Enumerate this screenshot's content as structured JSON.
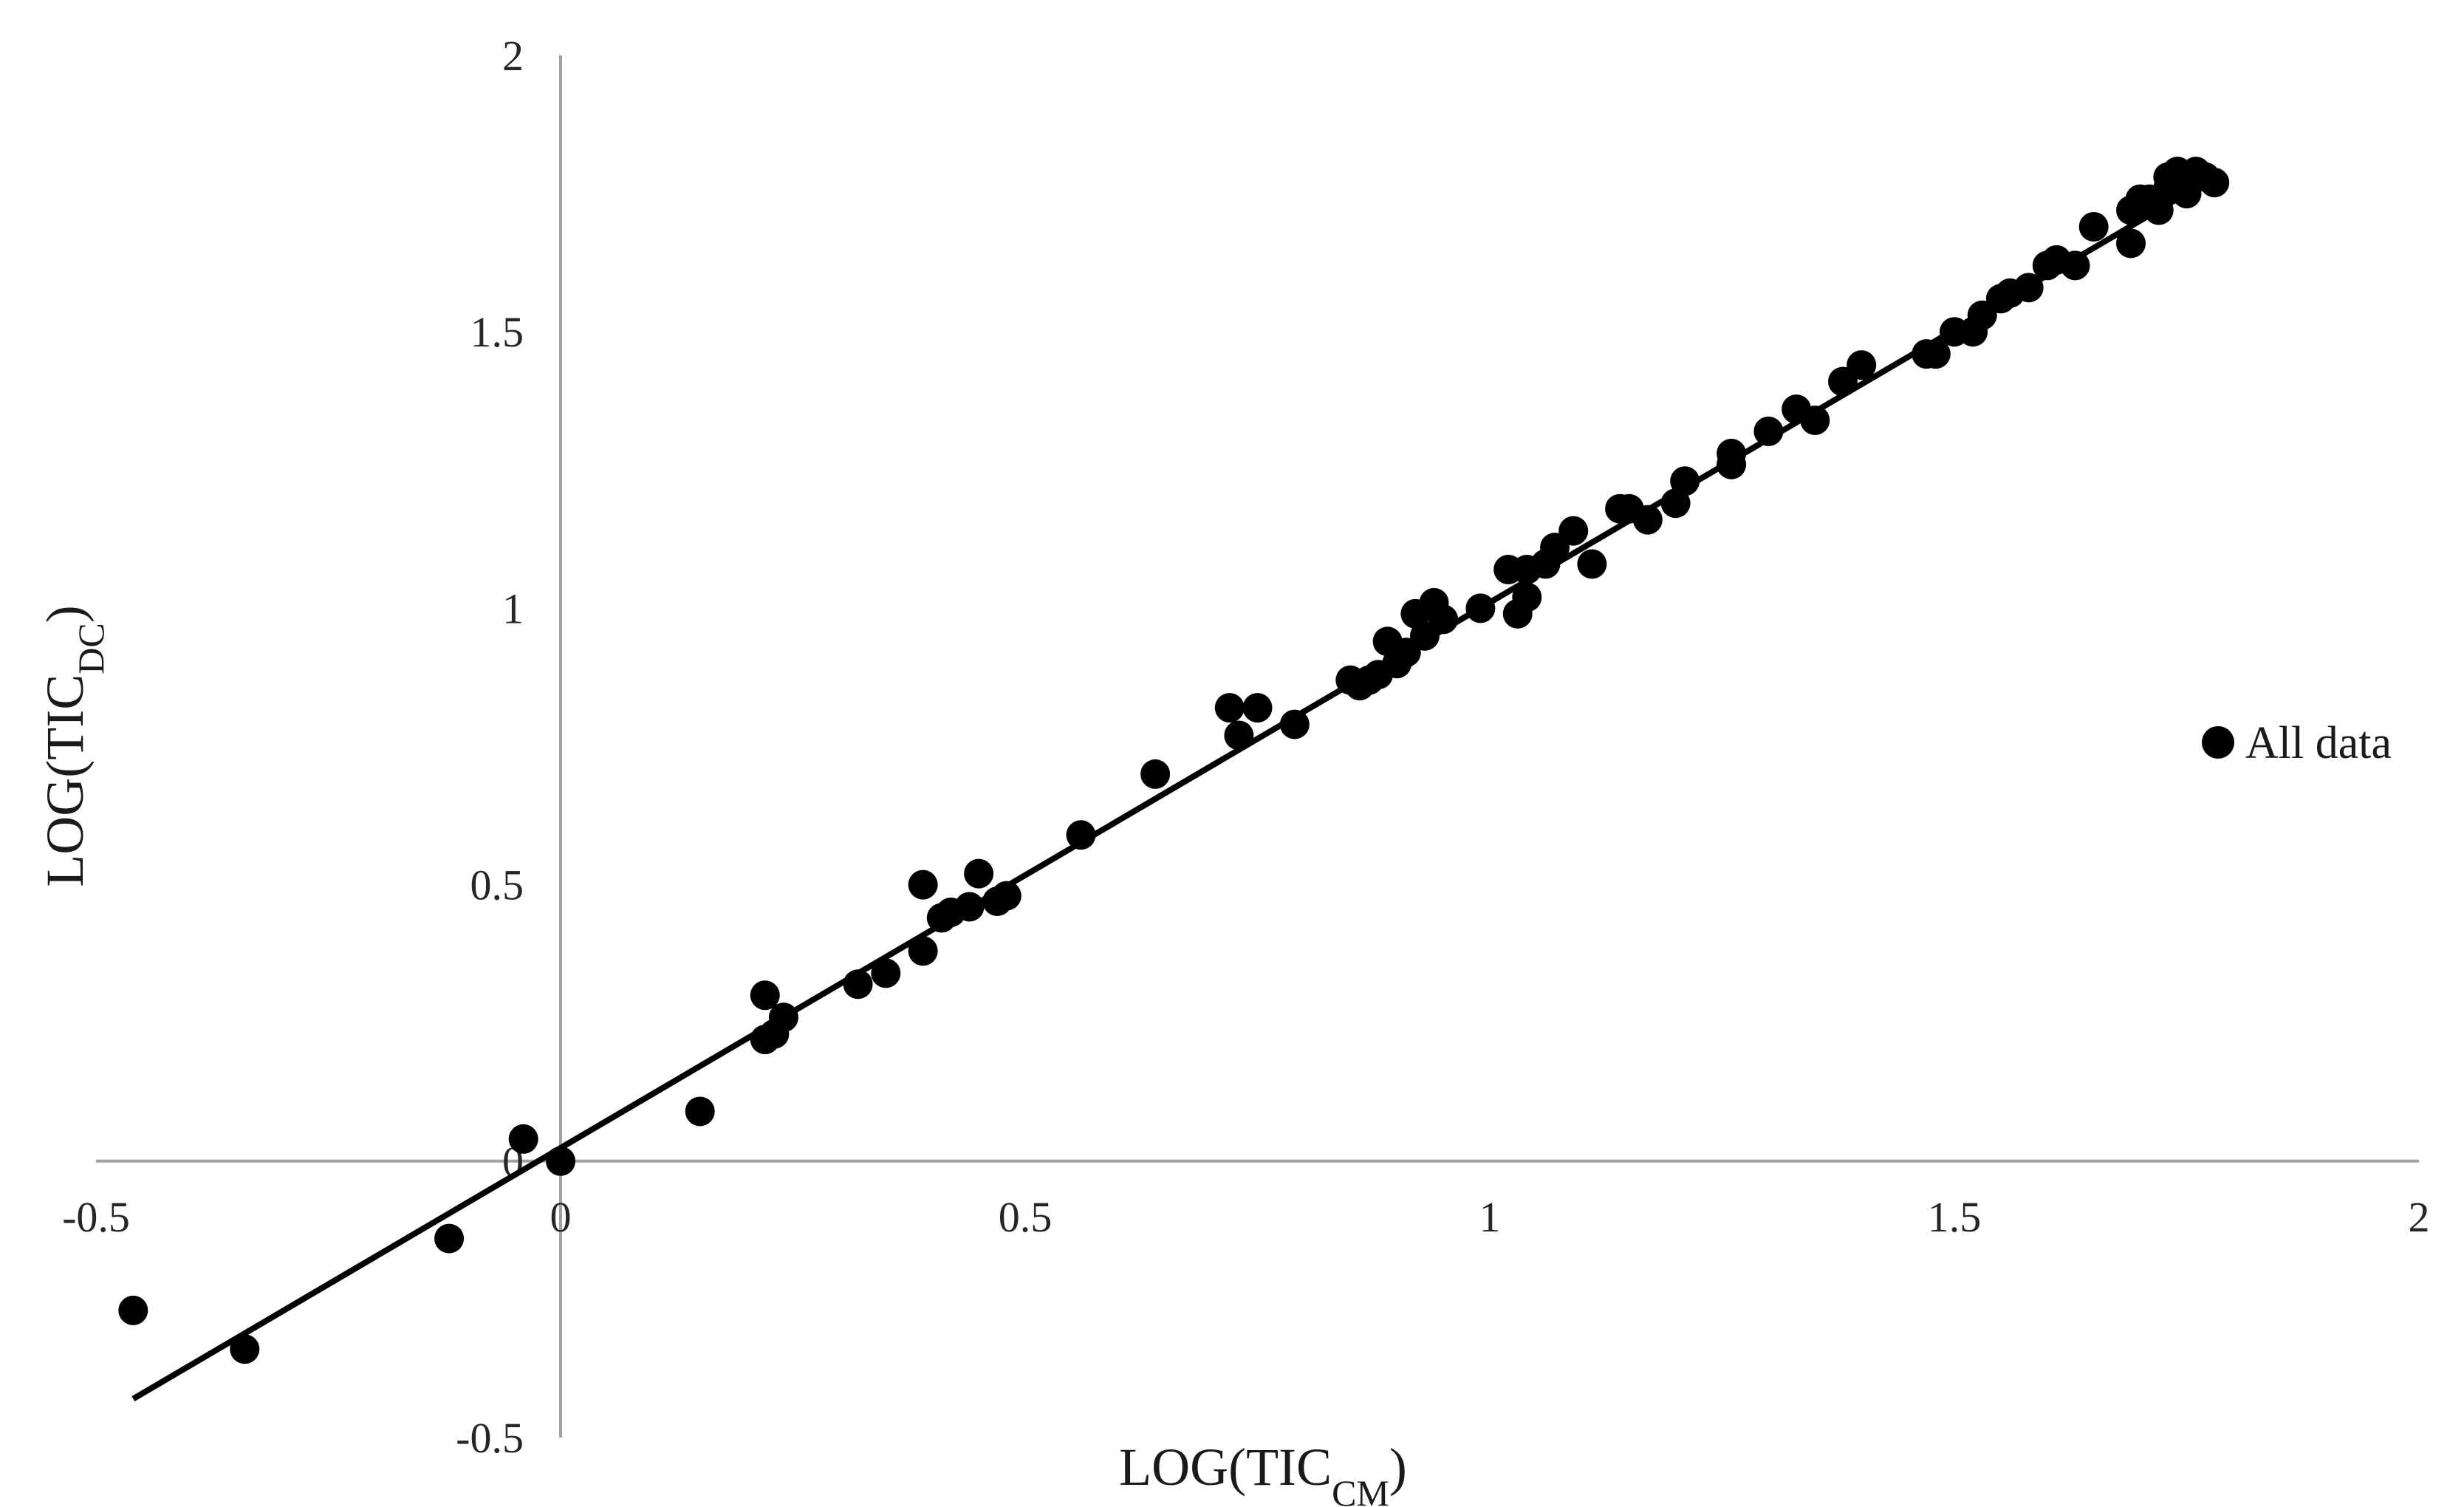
{
  "chart_data": {
    "type": "scatter",
    "xlabel_main": "LOG(TIC",
    "xlabel_sub": "CM",
    "xlabel_close": ")",
    "ylabel_main": "LOG(TIC",
    "ylabel_sub": "DC",
    "ylabel_close": ")",
    "xlim": [
      -0.5,
      2
    ],
    "ylim": [
      -0.5,
      2
    ],
    "x_ticks": [
      "-0.5",
      "0",
      "0.5",
      "1",
      "1.5",
      "2"
    ],
    "y_ticks": [
      "-0.5",
      "0",
      "0.5",
      "1",
      "1.5",
      "2"
    ],
    "grid": false,
    "legend_position": "right",
    "series": [
      {
        "name": "All data",
        "color": "#000000",
        "points": [
          [
            -0.46,
            -0.27
          ],
          [
            -0.34,
            -0.34
          ],
          [
            -0.12,
            -0.14
          ],
          [
            -0.04,
            0.04
          ],
          [
            0.0,
            0.0
          ],
          [
            0.15,
            0.09
          ],
          [
            0.22,
            0.3
          ],
          [
            0.22,
            0.22
          ],
          [
            0.23,
            0.23
          ],
          [
            0.24,
            0.26
          ],
          [
            0.32,
            0.32
          ],
          [
            0.35,
            0.34
          ],
          [
            0.39,
            0.5
          ],
          [
            0.39,
            0.38
          ],
          [
            0.41,
            0.44
          ],
          [
            0.42,
            0.45
          ],
          [
            0.44,
            0.46
          ],
          [
            0.45,
            0.52
          ],
          [
            0.47,
            0.47
          ],
          [
            0.48,
            0.48
          ],
          [
            0.56,
            0.59
          ],
          [
            0.64,
            0.7
          ],
          [
            0.72,
            0.82
          ],
          [
            0.73,
            0.77
          ],
          [
            0.75,
            0.82
          ],
          [
            0.79,
            0.79
          ],
          [
            0.85,
            0.87
          ],
          [
            0.86,
            0.86
          ],
          [
            0.87,
            0.87
          ],
          [
            0.88,
            0.88
          ],
          [
            0.89,
            0.94
          ],
          [
            0.9,
            0.9
          ],
          [
            0.91,
            0.92
          ],
          [
            0.92,
            0.99
          ],
          [
            0.93,
            0.95
          ],
          [
            0.94,
            1.01
          ],
          [
            0.95,
            0.98
          ],
          [
            0.99,
            1.0
          ],
          [
            1.02,
            1.07
          ],
          [
            1.03,
            0.99
          ],
          [
            1.04,
            1.07
          ],
          [
            1.04,
            1.02
          ],
          [
            1.06,
            1.08
          ],
          [
            1.07,
            1.11
          ],
          [
            1.09,
            1.14
          ],
          [
            1.11,
            1.08
          ],
          [
            1.14,
            1.18
          ],
          [
            1.15,
            1.18
          ],
          [
            1.17,
            1.16
          ],
          [
            1.2,
            1.19
          ],
          [
            1.21,
            1.23
          ],
          [
            1.26,
            1.28
          ],
          [
            1.26,
            1.26
          ],
          [
            1.3,
            1.32
          ],
          [
            1.33,
            1.36
          ],
          [
            1.35,
            1.34
          ],
          [
            1.38,
            1.41
          ],
          [
            1.4,
            1.44
          ],
          [
            1.47,
            1.46
          ],
          [
            1.48,
            1.46
          ],
          [
            1.5,
            1.5
          ],
          [
            1.52,
            1.5
          ],
          [
            1.53,
            1.53
          ],
          [
            1.55,
            1.56
          ],
          [
            1.56,
            1.57
          ],
          [
            1.58,
            1.58
          ],
          [
            1.6,
            1.62
          ],
          [
            1.61,
            1.63
          ],
          [
            1.63,
            1.62
          ],
          [
            1.65,
            1.69
          ],
          [
            1.69,
            1.66
          ],
          [
            1.69,
            1.72
          ],
          [
            1.7,
            1.74
          ],
          [
            1.71,
            1.74
          ],
          [
            1.72,
            1.72
          ],
          [
            1.73,
            1.76
          ],
          [
            1.73,
            1.78
          ],
          [
            1.74,
            1.79
          ],
          [
            1.75,
            1.75
          ],
          [
            1.76,
            1.79
          ],
          [
            1.77,
            1.78
          ],
          [
            1.78,
            1.77
          ]
        ]
      }
    ],
    "trendline": {
      "from": [
        -0.46,
        -0.43
      ],
      "to": [
        1.78,
        1.78
      ]
    }
  }
}
